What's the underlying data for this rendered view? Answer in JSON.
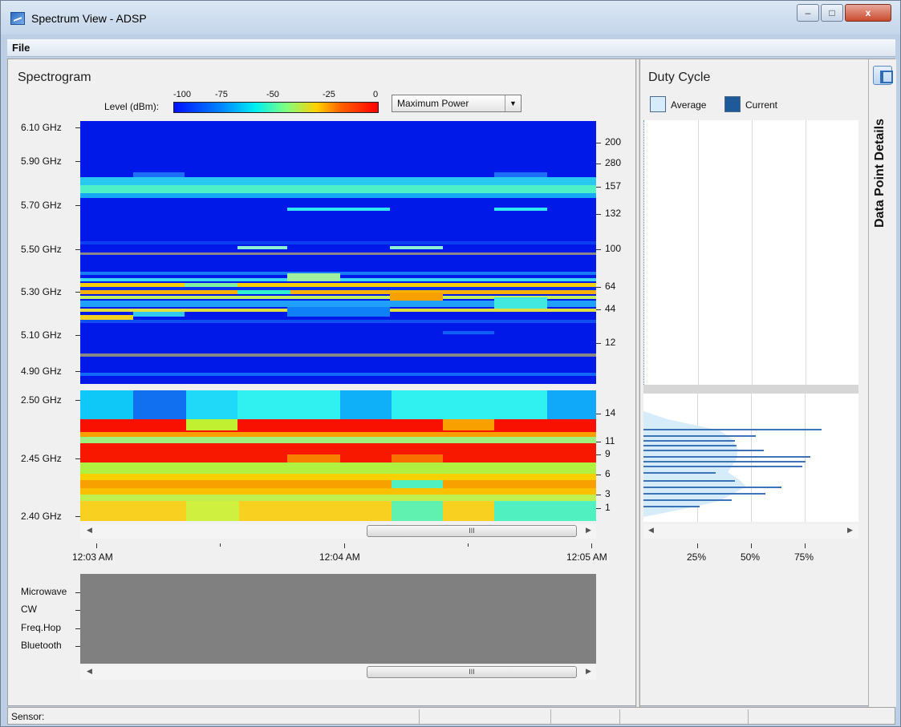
{
  "window": {
    "title": "Spectrum View - ADSP",
    "controls": {
      "minimize": "–",
      "maximize": "□",
      "close": "x"
    }
  },
  "menu": {
    "file": "File"
  },
  "spectrogram": {
    "title": "Spectrogram",
    "level_label": "Level (dBm):",
    "colorbar_ticks": [
      "-100",
      "-75",
      "-50",
      "-25",
      "0"
    ],
    "mode_value": "Maximum Power",
    "freq_labels_5ghz": [
      "6.10 GHz",
      "5.90 GHz",
      "5.70 GHz",
      "5.50 GHz",
      "5.30 GHz",
      "5.10 GHz",
      "4.90 GHz"
    ],
    "channels_5ghz": [
      "200",
      "280",
      "157",
      "132",
      "100",
      "64",
      "44",
      "12"
    ],
    "freq_labels_24ghz": [
      "2.50 GHz",
      "2.45 GHz",
      "2.40 GHz"
    ],
    "channels_24ghz": [
      "14",
      "11",
      "9",
      "6",
      "3",
      "1"
    ],
    "time_labels": [
      "12:03 AM",
      "12:04 AM",
      "12:05 AM"
    ],
    "scroll_thumb": "III"
  },
  "classification": {
    "labels": [
      "Microwave",
      "CW",
      "Freq.Hop",
      "Bluetooth"
    ],
    "scroll_thumb": "III"
  },
  "duty_cycle": {
    "title": "Duty Cycle",
    "legend_average": "Average",
    "legend_current": "Current",
    "x_labels": [
      "25%",
      "50%",
      "75%"
    ],
    "colors": {
      "average": "#d6ecfb",
      "current": "#3d74b8"
    }
  },
  "side_panel": {
    "label": "Data Point Details"
  },
  "status": {
    "sensor": "Sensor:"
  }
}
